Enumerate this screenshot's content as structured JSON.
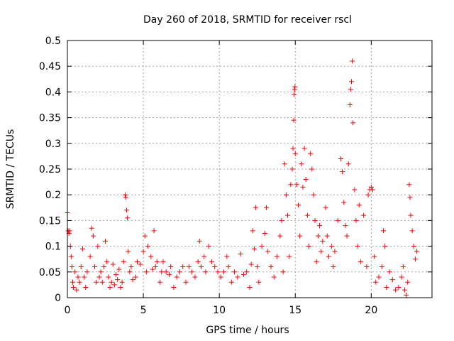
{
  "chart_data": {
    "type": "scatter",
    "title": "Day 260 of 2018, SRMTID for receiver rscl",
    "xlabel": "GPS time / hours",
    "ylabel": "SRMTID / TECUs",
    "xlim": [
      0,
      24
    ],
    "ylim": [
      0,
      0.5
    ],
    "x_ticks": [
      0,
      5,
      10,
      15,
      20
    ],
    "y_ticks": [
      0,
      0.05,
      0.1,
      0.15,
      0.2,
      0.25,
      0.3,
      0.35,
      0.4,
      0.45,
      0.5
    ],
    "x_tick_labels": [
      "0",
      "5",
      "10",
      "15",
      "20"
    ],
    "y_tick_labels": [
      "0",
      "0.05",
      "0.1",
      "0.15",
      "0.2",
      "0.25",
      "0.3",
      "0.35",
      "0.4",
      "0.45",
      "0.5"
    ],
    "grid": true,
    "marker": "+",
    "series": [
      {
        "name": "SRMTID",
        "color": "#ff0000",
        "points": [
          [
            0.0,
            0.165
          ],
          [
            0.05,
            0.13
          ],
          [
            0.1,
            0.125
          ],
          [
            0.15,
            0.13
          ],
          [
            0.2,
            0.1
          ],
          [
            0.25,
            0.08
          ],
          [
            0.3,
            0.06
          ],
          [
            0.35,
            0.03
          ],
          [
            0.4,
            0.02
          ],
          [
            0.5,
            0.05
          ],
          [
            0.6,
            0.015
          ],
          [
            0.7,
            0.04
          ],
          [
            0.8,
            0.03
          ],
          [
            0.9,
            0.06
          ],
          [
            1.0,
            0.095
          ],
          [
            1.1,
            0.04
          ],
          [
            1.2,
            0.02
          ],
          [
            1.3,
            0.05
          ],
          [
            1.5,
            0.08
          ],
          [
            1.6,
            0.135
          ],
          [
            1.7,
            0.12
          ],
          [
            1.8,
            0.06
          ],
          [
            1.9,
            0.03
          ],
          [
            2.0,
            0.1
          ],
          [
            2.1,
            0.04
          ],
          [
            2.2,
            0.05
          ],
          [
            2.3,
            0.03
          ],
          [
            2.4,
            0.06
          ],
          [
            2.5,
            0.11
          ],
          [
            2.6,
            0.07
          ],
          [
            2.7,
            0.04
          ],
          [
            2.8,
            0.02
          ],
          [
            2.9,
            0.03
          ],
          [
            3.0,
            0.065
          ],
          [
            3.1,
            0.025
          ],
          [
            3.2,
            0.045
          ],
          [
            3.3,
            0.035
          ],
          [
            3.4,
            0.055
          ],
          [
            3.5,
            0.02
          ],
          [
            3.6,
            0.03
          ],
          [
            3.7,
            0.07
          ],
          [
            3.8,
            0.2
          ],
          [
            3.85,
            0.195
          ],
          [
            3.9,
            0.17
          ],
          [
            3.95,
            0.155
          ],
          [
            4.0,
            0.09
          ],
          [
            4.1,
            0.05
          ],
          [
            4.2,
            0.06
          ],
          [
            4.3,
            0.035
          ],
          [
            4.5,
            0.04
          ],
          [
            4.6,
            0.07
          ],
          [
            4.8,
            0.065
          ],
          [
            5.0,
            0.09
          ],
          [
            5.1,
            0.12
          ],
          [
            5.2,
            0.05
          ],
          [
            5.3,
            0.1
          ],
          [
            5.5,
            0.08
          ],
          [
            5.6,
            0.055
          ],
          [
            5.7,
            0.13
          ],
          [
            5.8,
            0.06
          ],
          [
            5.9,
            0.07
          ],
          [
            6.1,
            0.03
          ],
          [
            6.2,
            0.05
          ],
          [
            6.3,
            0.07
          ],
          [
            6.5,
            0.05
          ],
          [
            6.7,
            0.045
          ],
          [
            6.8,
            0.06
          ],
          [
            7.0,
            0.02
          ],
          [
            7.2,
            0.04
          ],
          [
            7.4,
            0.05
          ],
          [
            7.6,
            0.06
          ],
          [
            7.8,
            0.03
          ],
          [
            8.0,
            0.06
          ],
          [
            8.2,
            0.05
          ],
          [
            8.4,
            0.04
          ],
          [
            8.6,
            0.07
          ],
          [
            8.7,
            0.11
          ],
          [
            8.8,
            0.06
          ],
          [
            9.0,
            0.08
          ],
          [
            9.1,
            0.05
          ],
          [
            9.3,
            0.1
          ],
          [
            9.5,
            0.07
          ],
          [
            9.7,
            0.06
          ],
          [
            9.9,
            0.05
          ],
          [
            10.1,
            0.04
          ],
          [
            10.3,
            0.05
          ],
          [
            10.5,
            0.08
          ],
          [
            10.6,
            0.06
          ],
          [
            10.8,
            0.03
          ],
          [
            11.0,
            0.05
          ],
          [
            11.2,
            0.04
          ],
          [
            11.4,
            0.085
          ],
          [
            11.6,
            0.045
          ],
          [
            11.8,
            0.05
          ],
          [
            12.0,
            0.02
          ],
          [
            12.1,
            0.065
          ],
          [
            12.2,
            0.13
          ],
          [
            12.3,
            0.095
          ],
          [
            12.4,
            0.175
          ],
          [
            12.5,
            0.06
          ],
          [
            12.6,
            0.03
          ],
          [
            12.8,
            0.1
          ],
          [
            13.0,
            0.125
          ],
          [
            13.1,
            0.175
          ],
          [
            13.2,
            0.09
          ],
          [
            13.4,
            0.06
          ],
          [
            13.6,
            0.04
          ],
          [
            13.8,
            0.08
          ],
          [
            14.0,
            0.12
          ],
          [
            14.1,
            0.15
          ],
          [
            14.2,
            0.05
          ],
          [
            14.3,
            0.26
          ],
          [
            14.4,
            0.2
          ],
          [
            14.5,
            0.16
          ],
          [
            14.6,
            0.08
          ],
          [
            14.7,
            0.22
          ],
          [
            14.8,
            0.25
          ],
          [
            14.85,
            0.29
          ],
          [
            14.9,
            0.345
          ],
          [
            14.92,
            0.395
          ],
          [
            14.95,
            0.405
          ],
          [
            14.98,
            0.41
          ],
          [
            15.0,
            0.28
          ],
          [
            15.1,
            0.22
          ],
          [
            15.2,
            0.18
          ],
          [
            15.3,
            0.12
          ],
          [
            15.4,
            0.26
          ],
          [
            15.5,
            0.215
          ],
          [
            15.6,
            0.29
          ],
          [
            15.7,
            0.23
          ],
          [
            15.8,
            0.16
          ],
          [
            15.9,
            0.1
          ],
          [
            16.0,
            0.28
          ],
          [
            16.1,
            0.25
          ],
          [
            16.2,
            0.2
          ],
          [
            16.3,
            0.15
          ],
          [
            16.4,
            0.07
          ],
          [
            16.5,
            0.12
          ],
          [
            16.6,
            0.14
          ],
          [
            16.7,
            0.09
          ],
          [
            16.8,
            0.11
          ],
          [
            17.0,
            0.175
          ],
          [
            17.1,
            0.12
          ],
          [
            17.2,
            0.08
          ],
          [
            17.4,
            0.1
          ],
          [
            17.5,
            0.06
          ],
          [
            17.6,
            0.09
          ],
          [
            17.8,
            0.15
          ],
          [
            18.0,
            0.27
          ],
          [
            18.1,
            0.245
          ],
          [
            18.2,
            0.185
          ],
          [
            18.3,
            0.14
          ],
          [
            18.4,
            0.12
          ],
          [
            18.5,
            0.26
          ],
          [
            18.6,
            0.375
          ],
          [
            18.65,
            0.405
          ],
          [
            18.7,
            0.42
          ],
          [
            18.75,
            0.46
          ],
          [
            18.8,
            0.34
          ],
          [
            18.9,
            0.21
          ],
          [
            19.0,
            0.15
          ],
          [
            19.1,
            0.1
          ],
          [
            19.2,
            0.18
          ],
          [
            19.3,
            0.07
          ],
          [
            19.5,
            0.16
          ],
          [
            19.7,
            0.06
          ],
          [
            19.8,
            0.2
          ],
          [
            19.9,
            0.21
          ],
          [
            20.0,
            0.215
          ],
          [
            20.1,
            0.21
          ],
          [
            20.2,
            0.08
          ],
          [
            20.3,
            0.03
          ],
          [
            20.5,
            0.04
          ],
          [
            20.7,
            0.06
          ],
          [
            20.8,
            0.13
          ],
          [
            20.9,
            0.1
          ],
          [
            21.0,
            0.02
          ],
          [
            21.2,
            0.05
          ],
          [
            21.4,
            0.035
          ],
          [
            21.6,
            0.015
          ],
          [
            21.8,
            0.02
          ],
          [
            22.0,
            0.04
          ],
          [
            22.1,
            0.06
          ],
          [
            22.2,
            0.015
          ],
          [
            22.3,
            0.005
          ],
          [
            22.4,
            0.03
          ],
          [
            22.5,
            0.22
          ],
          [
            22.55,
            0.195
          ],
          [
            22.6,
            0.16
          ],
          [
            22.7,
            0.13
          ],
          [
            22.8,
            0.1
          ],
          [
            22.9,
            0.075
          ],
          [
            23.0,
            0.09
          ]
        ]
      }
    ]
  }
}
